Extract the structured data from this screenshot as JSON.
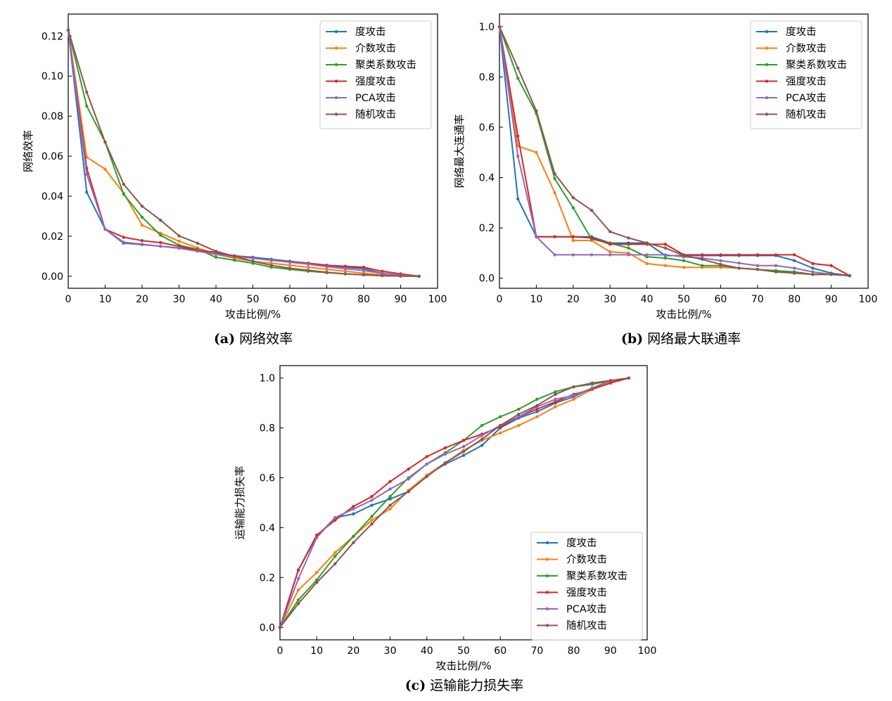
{
  "chart_data": [
    {
      "type": "line",
      "caption_letter": "(a)",
      "caption_text": "网络效率",
      "xlabel": "攻击比例/%",
      "ylabel": "网络效率",
      "xlim": [
        0,
        100
      ],
      "ylim": [
        -0.006,
        0.131
      ],
      "xticks": [
        0,
        10,
        20,
        30,
        40,
        50,
        60,
        70,
        80,
        90,
        100
      ],
      "yticks": [
        0.0,
        0.02,
        0.04,
        0.06,
        0.08,
        0.1,
        0.12
      ],
      "ytick_labels": [
        "0.00",
        "0.02",
        "0.04",
        "0.06",
        "0.08",
        "0.10",
        "0.12"
      ],
      "legend_position": "top-right",
      "grid": false,
      "x": [
        0,
        5,
        10,
        15,
        20,
        25,
        30,
        35,
        40,
        45,
        50,
        55,
        60,
        65,
        70,
        75,
        80,
        85,
        90,
        95
      ],
      "series": [
        {
          "name": "度攻击",
          "color": "#1f77b4",
          "values": [
            0.123,
            0.042,
            0.0235,
            0.0165,
            0.0158,
            0.015,
            0.0142,
            0.013,
            0.0115,
            0.0102,
            0.0095,
            0.0085,
            0.0075,
            0.0065,
            0.0055,
            0.0045,
            0.0038,
            0.0015,
            0.0005,
            0.0
          ]
        },
        {
          "name": "介数攻击",
          "color": "#ff7f0e",
          "values": [
            0.123,
            0.0595,
            0.0535,
            0.0415,
            0.0255,
            0.0215,
            0.0175,
            0.0142,
            0.011,
            0.009,
            0.0075,
            0.0065,
            0.0055,
            0.0045,
            0.0035,
            0.0025,
            0.0015,
            0.0008,
            0.0003,
            0.0
          ]
        },
        {
          "name": "聚类系数攻击",
          "color": "#2ca02c",
          "values": [
            0.123,
            0.085,
            0.067,
            0.041,
            0.0295,
            0.0205,
            0.0155,
            0.0135,
            0.0095,
            0.008,
            0.0065,
            0.0045,
            0.0035,
            0.0025,
            0.0018,
            0.0012,
            0.0007,
            0.0003,
            0.0001,
            0.0
          ]
        },
        {
          "name": "强度攻击",
          "color": "#d62728",
          "values": [
            0.123,
            0.054,
            0.0235,
            0.0195,
            0.0178,
            0.0168,
            0.015,
            0.013,
            0.012,
            0.0102,
            0.009,
            0.008,
            0.0072,
            0.0065,
            0.0055,
            0.005,
            0.0045,
            0.0025,
            0.0012,
            0.0
          ]
        },
        {
          "name": "PCA攻击",
          "color": "#9467bd",
          "values": [
            0.123,
            0.051,
            0.0235,
            0.017,
            0.016,
            0.015,
            0.014,
            0.0125,
            0.011,
            0.0098,
            0.009,
            0.008,
            0.007,
            0.006,
            0.0048,
            0.0038,
            0.0028,
            0.0015,
            0.0005,
            0.0
          ]
        },
        {
          "name": "随机攻击",
          "color": "#8c564b",
          "values": [
            0.123,
            0.092,
            0.067,
            0.046,
            0.035,
            0.028,
            0.0202,
            0.0165,
            0.0125,
            0.01,
            0.0075,
            0.0055,
            0.004,
            0.003,
            0.002,
            0.0012,
            0.0007,
            0.0003,
            0.0001,
            0.0
          ]
        }
      ]
    },
    {
      "type": "line",
      "caption_letter": "(b)",
      "caption_text": "网络最大联通率",
      "xlabel": "攻击比例/%",
      "ylabel": "网络最大连通率",
      "xlim": [
        0,
        100
      ],
      "ylim": [
        -0.04,
        1.05
      ],
      "xticks": [
        0,
        10,
        20,
        30,
        40,
        50,
        60,
        70,
        80,
        90,
        100
      ],
      "yticks": [
        0.0,
        0.2,
        0.4,
        0.6,
        0.8,
        1.0
      ],
      "ytick_labels": [
        "0.0",
        "0.2",
        "0.4",
        "0.6",
        "0.8",
        "1.0"
      ],
      "legend_position": "top-right",
      "grid": false,
      "x": [
        0,
        5,
        10,
        15,
        20,
        25,
        30,
        35,
        40,
        45,
        50,
        55,
        60,
        65,
        70,
        75,
        80,
        85,
        90,
        95
      ],
      "series": [
        {
          "name": "度攻击",
          "color": "#1f77b4",
          "values": [
            1.0,
            0.315,
            0.165,
            0.165,
            0.165,
            0.165,
            0.14,
            0.14,
            0.14,
            0.09,
            0.09,
            0.09,
            0.09,
            0.09,
            0.09,
            0.09,
            0.07,
            0.04,
            0.02,
            0.01
          ]
        },
        {
          "name": "介数攻击",
          "color": "#ff7f0e",
          "values": [
            1.0,
            0.525,
            0.5,
            0.34,
            0.15,
            0.15,
            0.105,
            0.1,
            0.058,
            0.05,
            0.043,
            0.043,
            0.043,
            0.04,
            0.035,
            0.03,
            0.025,
            0.015,
            0.015,
            0.01
          ]
        },
        {
          "name": "聚类系数攻击",
          "color": "#2ca02c",
          "values": [
            1.0,
            0.795,
            0.655,
            0.395,
            0.28,
            0.155,
            0.14,
            0.12,
            0.085,
            0.08,
            0.07,
            0.05,
            0.05,
            0.04,
            0.035,
            0.03,
            0.025,
            0.015,
            0.015,
            0.01
          ]
        },
        {
          "name": "强度攻击",
          "color": "#d62728",
          "values": [
            1.0,
            0.565,
            0.165,
            0.165,
            0.165,
            0.16,
            0.135,
            0.135,
            0.135,
            0.135,
            0.093,
            0.093,
            0.093,
            0.093,
            0.093,
            0.093,
            0.093,
            0.058,
            0.05,
            0.01
          ]
        },
        {
          "name": "PCA攻击",
          "color": "#9467bd",
          "values": [
            1.0,
            0.485,
            0.165,
            0.093,
            0.093,
            0.093,
            0.093,
            0.093,
            0.093,
            0.093,
            0.085,
            0.08,
            0.07,
            0.06,
            0.05,
            0.05,
            0.04,
            0.025,
            0.015,
            0.01
          ]
        },
        {
          "name": "随机攻击",
          "color": "#8c564b",
          "values": [
            1.0,
            0.835,
            0.665,
            0.415,
            0.32,
            0.27,
            0.185,
            0.16,
            0.14,
            0.12,
            0.09,
            0.075,
            0.055,
            0.04,
            0.035,
            0.025,
            0.02,
            0.015,
            0.015,
            0.01
          ]
        }
      ]
    },
    {
      "type": "line",
      "caption_letter": "(c)",
      "caption_text": "运输能力损失率",
      "xlabel": "攻击比例/%",
      "ylabel": "运输能力损失率",
      "xlim": [
        0,
        100
      ],
      "ylim": [
        -0.05,
        1.05
      ],
      "xticks": [
        0,
        10,
        20,
        30,
        40,
        50,
        60,
        70,
        80,
        90,
        100
      ],
      "yticks": [
        0.0,
        0.2,
        0.4,
        0.6,
        0.8,
        1.0
      ],
      "ytick_labels": [
        "0.0",
        "0.2",
        "0.4",
        "0.6",
        "0.8",
        "1.0"
      ],
      "legend_position": "bottom-right",
      "grid": false,
      "x": [
        0,
        5,
        10,
        15,
        20,
        25,
        30,
        35,
        40,
        45,
        50,
        55,
        60,
        65,
        70,
        75,
        80,
        85,
        90,
        95
      ],
      "series": [
        {
          "name": "度攻击",
          "color": "#1f77b4",
          "values": [
            0.0,
            0.23,
            0.365,
            0.44,
            0.455,
            0.49,
            0.515,
            0.545,
            0.61,
            0.655,
            0.69,
            0.73,
            0.8,
            0.84,
            0.865,
            0.9,
            0.925,
            0.96,
            0.985,
            1.0
          ]
        },
        {
          "name": "介数攻击",
          "color": "#ff7f0e",
          "values": [
            0.0,
            0.15,
            0.22,
            0.3,
            0.365,
            0.43,
            0.475,
            0.55,
            0.61,
            0.66,
            0.71,
            0.75,
            0.78,
            0.81,
            0.845,
            0.885,
            0.915,
            0.955,
            0.985,
            1.0
          ]
        },
        {
          "name": "聚类系数攻击",
          "color": "#2ca02c",
          "values": [
            0.0,
            0.11,
            0.19,
            0.285,
            0.365,
            0.445,
            0.525,
            0.6,
            0.655,
            0.7,
            0.75,
            0.81,
            0.845,
            0.875,
            0.915,
            0.945,
            0.965,
            0.975,
            0.99,
            1.0
          ]
        },
        {
          "name": "强度攻击",
          "color": "#d62728",
          "values": [
            0.0,
            0.23,
            0.37,
            0.43,
            0.485,
            0.525,
            0.585,
            0.635,
            0.685,
            0.72,
            0.75,
            0.775,
            0.805,
            0.845,
            0.875,
            0.905,
            0.935,
            0.955,
            0.98,
            1.0
          ]
        },
        {
          "name": "PCA攻击",
          "color": "#9467bd",
          "values": [
            0.0,
            0.195,
            0.36,
            0.44,
            0.475,
            0.51,
            0.555,
            0.595,
            0.655,
            0.695,
            0.725,
            0.77,
            0.81,
            0.845,
            0.885,
            0.915,
            0.93,
            0.96,
            0.99,
            1.0
          ]
        },
        {
          "name": "随机攻击",
          "color": "#8c564b",
          "values": [
            0.0,
            0.095,
            0.18,
            0.255,
            0.34,
            0.415,
            0.49,
            0.545,
            0.605,
            0.66,
            0.705,
            0.755,
            0.81,
            0.855,
            0.89,
            0.935,
            0.965,
            0.98,
            0.99,
            1.0
          ]
        }
      ]
    }
  ]
}
